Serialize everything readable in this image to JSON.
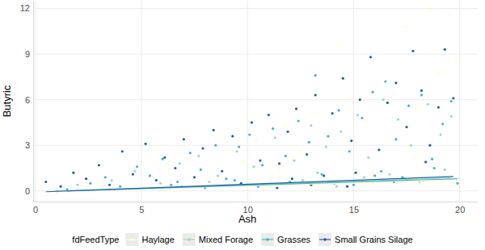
{
  "chart_data": {
    "type": "scatter",
    "x_label": "Ash",
    "y_label": "Butyric",
    "legend_title": "fdFeedType",
    "legend": "bottom",
    "grid": true,
    "xlim": [
      -0.1,
      20.85
    ],
    "ylim": [
      -0.7,
      12.5
    ],
    "xticks": [
      0,
      5,
      10,
      15,
      20
    ],
    "yticks": [
      0,
      3,
      6,
      9,
      12
    ],
    "series": [
      {
        "name": "Haylage",
        "color": "#ffffcc",
        "marker": "circle",
        "x": [
          2.3,
          3.2,
          4.4,
          5.5,
          6.3,
          7.2,
          8.1,
          8.9,
          9.8,
          10.4,
          11.1,
          11.7,
          12.5,
          13.1,
          13.9,
          14.3,
          14.9,
          15.6,
          16.1,
          16.8,
          17.5,
          18.0,
          18.6,
          19.0,
          19.5,
          19.8,
          10.9,
          12.7,
          14.6,
          15.9,
          17.2,
          18.3,
          19.4,
          13.4,
          16.4,
          9.2,
          7.6,
          5.0,
          11.5,
          17.9
        ],
        "values": [
          0.2,
          0.6,
          1.1,
          0.4,
          1.5,
          2.0,
          0.7,
          2.7,
          1.9,
          3.3,
          0.9,
          4.2,
          2.6,
          5.1,
          3.8,
          9.6,
          6.1,
          4.5,
          7.0,
          3.1,
          10.8,
          5.3,
          11.9,
          7.8,
          11.5,
          8.5,
          0.3,
          0.5,
          0.8,
          1.2,
          0.6,
          1.7,
          0.9,
          0.4,
          0.7,
          0.3,
          0.5,
          0.2,
          1.4,
          2.2
        ],
        "trend_x": [
          2.3,
          19.8
        ],
        "trend_values": [
          0.05,
          0.7
        ]
      },
      {
        "name": "Mixed Forage",
        "color": "#a1dab4",
        "marker": "circle",
        "x": [
          1.0,
          2.0,
          3.6,
          4.7,
          5.9,
          6.8,
          7.7,
          8.6,
          9.5,
          10.3,
          11.3,
          12.2,
          13.0,
          13.7,
          14.4,
          15.2,
          15.7,
          16.4,
          17.1,
          17.7,
          18.5,
          19.1,
          19.6,
          10.0,
          12.6,
          14.2,
          16.7,
          18.1,
          19.3,
          11.6,
          6.9,
          15.5,
          13.3,
          17.4,
          8.2
        ],
        "values": [
          0.0,
          0.4,
          0.7,
          1.3,
          0.5,
          1.8,
          2.3,
          1.0,
          2.6,
          1.6,
          3.5,
          2.0,
          4.3,
          2.9,
          3.9,
          5.0,
          2.2,
          6.0,
          4.7,
          3.0,
          5.7,
          3.7,
          4.9,
          0.4,
          0.7,
          0.3,
          1.1,
          0.6,
          1.4,
          0.5,
          0.3,
          0.9,
          1.2,
          0.8,
          0.6
        ],
        "trend_x": [
          1.0,
          19.6
        ],
        "trend_values": [
          0.0,
          0.85
        ]
      },
      {
        "name": "Grasses",
        "color": "#41b6c4",
        "marker": "circle",
        "x": [
          1.5,
          2.6,
          3.3,
          4.0,
          4.8,
          5.4,
          6.0,
          6.7,
          7.3,
          7.8,
          8.5,
          9.0,
          9.6,
          10.1,
          10.7,
          11.2,
          11.8,
          12.4,
          12.9,
          13.2,
          13.8,
          14.3,
          14.8,
          15.4,
          15.9,
          16.5,
          17.0,
          17.6,
          18.2,
          18.7,
          19.2,
          19.6,
          10.5,
          12.0,
          13.5,
          15.0,
          16.3,
          17.3,
          18.8,
          19.9,
          8.0,
          9.4,
          14.1,
          16.0,
          6.4
        ],
        "values": [
          0.1,
          0.5,
          0.9,
          0.3,
          1.6,
          1.0,
          2.1,
          0.6,
          2.5,
          1.4,
          3.0,
          0.8,
          2.9,
          3.7,
          1.7,
          4.1,
          2.3,
          4.6,
          3.2,
          7.6,
          3.6,
          5.3,
          2.6,
          4.8,
          6.5,
          7.2,
          3.4,
          5.6,
          6.3,
          2.1,
          4.4,
          5.9,
          0.3,
          0.6,
          1.1,
          0.4,
          1.3,
          0.9,
          1.5,
          0.5,
          0.2,
          0.7,
          0.5,
          1.0,
          0.4
        ],
        "trend_x": [
          1.5,
          19.9
        ],
        "trend_values": [
          0.0,
          0.8
        ]
      },
      {
        "name": "Small Grains Silage",
        "color": "#225ea8",
        "marker": "circle",
        "x": [
          0.5,
          1.2,
          1.8,
          2.4,
          3.0,
          3.5,
          4.1,
          4.6,
          5.2,
          5.7,
          6.1,
          6.6,
          7.0,
          7.5,
          7.9,
          8.4,
          8.8,
          9.3,
          9.7,
          10.2,
          10.6,
          11.0,
          11.5,
          11.9,
          12.3,
          12.8,
          13.2,
          13.6,
          14.0,
          14.5,
          14.9,
          15.3,
          15.8,
          16.2,
          16.6,
          17.0,
          17.5,
          17.8,
          18.2,
          18.6,
          19.0,
          19.3,
          19.7,
          11.4,
          13.0,
          15.1,
          16.9,
          18.4,
          12.1,
          14.7
        ],
        "values": [
          0.6,
          0.3,
          1.2,
          0.8,
          1.7,
          0.4,
          2.6,
          1.1,
          3.1,
          0.7,
          2.2,
          1.5,
          3.4,
          0.9,
          2.8,
          4.0,
          1.3,
          3.6,
          0.5,
          4.5,
          2.0,
          5.0,
          1.8,
          3.9,
          5.4,
          2.4,
          6.3,
          1.0,
          5.1,
          7.4,
          3.3,
          6.0,
          8.8,
          2.7,
          5.8,
          7.1,
          4.2,
          9.2,
          6.6,
          3.0,
          5.5,
          9.3,
          6.1,
          0.2,
          0.4,
          1.2,
          0.6,
          1.9,
          0.8,
          0.3
        ],
        "trend_x": [
          0.5,
          19.7
        ],
        "trend_values": [
          -0.05,
          0.95
        ]
      }
    ]
  }
}
